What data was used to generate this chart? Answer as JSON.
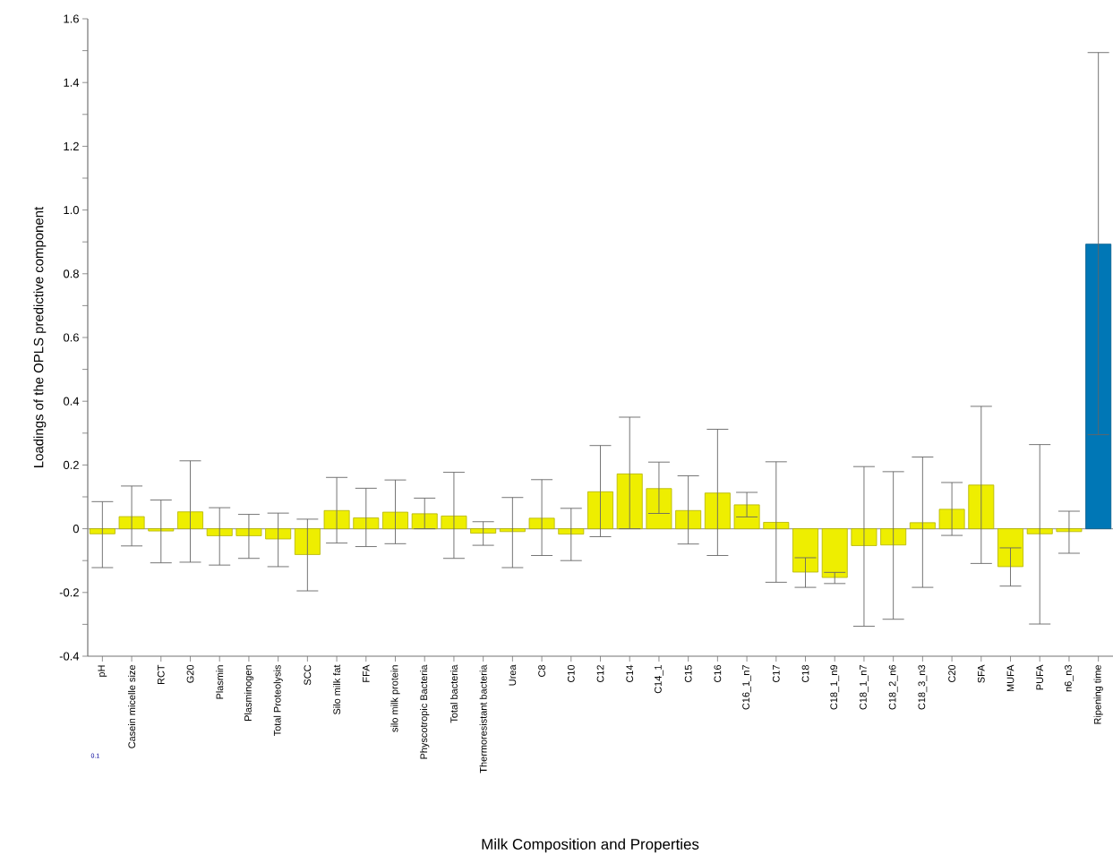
{
  "chart_data": {
    "type": "bar",
    "xlabel": "Milk Composition and Properties",
    "ylabel": "Loadings of the OPLS predictive component",
    "categories": [
      "pH",
      "Casein micelle size",
      "RCT",
      "G20",
      "Plasmin",
      "Plasminogen",
      "Total Proteolysis",
      "SCC",
      "Silo milk fat",
      "FFA",
      "silo milk protein",
      "Physcotropic Bacteria",
      "Total bacteria",
      "Thermoresistant bacteria",
      "Urea",
      "C8",
      "C10",
      "C12",
      "C14",
      "C14_1",
      "C15",
      "C16",
      "C16_1_n7",
      "C17",
      "C18",
      "C18_1_n9",
      "C18_1_n7",
      "C18_2_n6",
      "C18_3_n3",
      "C20",
      "SFA",
      "MUFA",
      "PUFA",
      "n6_n3",
      "Ripening time"
    ],
    "values": [
      -0.016,
      0.038,
      -0.007,
      0.053,
      -0.022,
      -0.022,
      -0.032,
      -0.081,
      0.057,
      0.034,
      0.052,
      0.047,
      0.04,
      -0.014,
      -0.009,
      0.033,
      -0.017,
      0.116,
      0.172,
      0.126,
      0.057,
      0.112,
      0.075,
      0.02,
      -0.136,
      -0.153,
      -0.053,
      -0.051,
      0.019,
      0.061,
      0.137,
      -0.119,
      -0.016,
      -0.009,
      0.893
    ],
    "errors": [
      [
        -0.122,
        0.085
      ],
      [
        -0.054,
        0.134
      ],
      [
        -0.107,
        0.09
      ],
      [
        -0.105,
        0.213
      ],
      [
        -0.114,
        0.066
      ],
      [
        -0.093,
        0.045
      ],
      [
        -0.119,
        0.049
      ],
      [
        -0.195,
        0.03
      ],
      [
        -0.045,
        0.161
      ],
      [
        -0.056,
        0.127
      ],
      [
        -0.047,
        0.153
      ],
      [
        0.0,
        0.096
      ],
      [
        -0.093,
        0.177
      ],
      [
        -0.052,
        0.022
      ],
      [
        -0.122,
        0.098
      ],
      [
        -0.084,
        0.154
      ],
      [
        -0.1,
        0.064
      ],
      [
        -0.025,
        0.261
      ],
      [
        0.0,
        0.35
      ],
      [
        0.048,
        0.209
      ],
      [
        -0.048,
        0.166
      ],
      [
        -0.084,
        0.312
      ],
      [
        0.037,
        0.114
      ],
      [
        -0.168,
        0.21
      ],
      [
        -0.184,
        -0.091
      ],
      [
        -0.172,
        -0.137
      ],
      [
        -0.306,
        0.195
      ],
      [
        -0.284,
        0.179
      ],
      [
        -0.184,
        0.225
      ],
      [
        -0.021,
        0.145
      ],
      [
        -0.109,
        0.384
      ],
      [
        -0.18,
        -0.06
      ],
      [
        -0.299,
        0.264
      ],
      [
        -0.077,
        0.055
      ],
      [
        0.295,
        1.494
      ]
    ],
    "colors": [
      "#eeee00",
      "#eeee00",
      "#eeee00",
      "#eeee00",
      "#eeee00",
      "#eeee00",
      "#eeee00",
      "#eeee00",
      "#eeee00",
      "#eeee00",
      "#eeee00",
      "#eeee00",
      "#eeee00",
      "#eeee00",
      "#eeee00",
      "#eeee00",
      "#eeee00",
      "#eeee00",
      "#eeee00",
      "#eeee00",
      "#eeee00",
      "#eeee00",
      "#eeee00",
      "#eeee00",
      "#eeee00",
      "#eeee00",
      "#eeee00",
      "#eeee00",
      "#eeee00",
      "#eeee00",
      "#eeee00",
      "#eeee00",
      "#eeee00",
      "#eeee00",
      "#0077b6"
    ],
    "ylim": [
      -0.4,
      1.6
    ],
    "yticks": [
      -0.4,
      -0.2,
      0,
      0.2,
      0.4,
      0.6,
      0.8,
      {
        "value": 1.0,
        "label": "1.0"
      },
      1.2,
      1.4,
      1.6
    ],
    "ref_lines": [
      {
        "axis": "y",
        "value": 0,
        "color": "#a0a0a0"
      }
    ],
    "annotations": [
      "0.1"
    ]
  }
}
